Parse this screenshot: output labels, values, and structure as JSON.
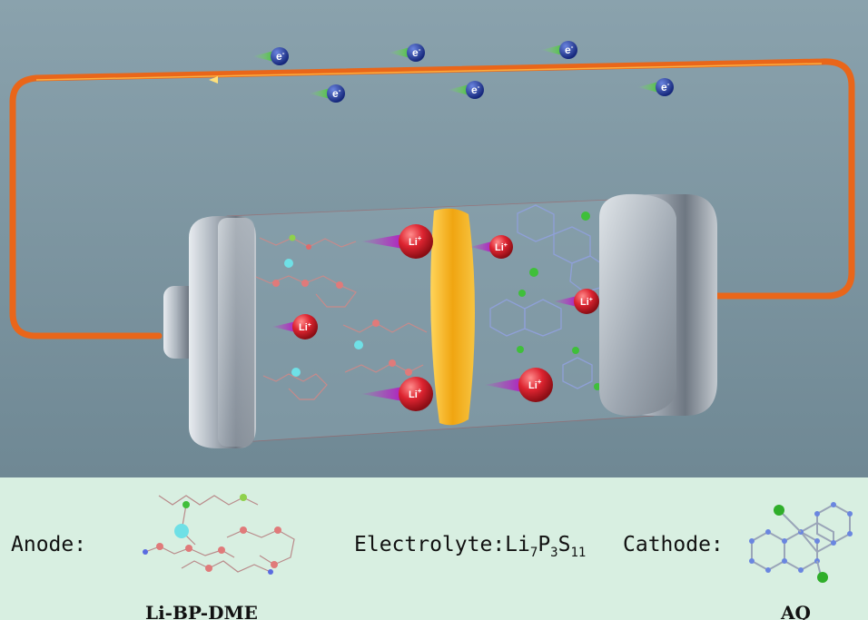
{
  "electron": {
    "symbol": "e",
    "sup": "-"
  },
  "li_ion": {
    "symbol": "Li",
    "sup": "+"
  },
  "legend": {
    "anode_label": "Anode:",
    "anode_name": "Li-BP-DME",
    "electrolyte_label": "Electrolyte:",
    "electrolyte_formula": {
      "li": "Li",
      "li_sub": "7",
      "p": "P",
      "p_sub": "3",
      "s": "S",
      "s_sub": "11"
    },
    "cathode_label": "Cathode:",
    "cathode_name": "AQ"
  },
  "colors": {
    "background": "#7b939f",
    "legend_panel": "#d8efe1",
    "wire": "#ee6a1a",
    "electron": "#1f3b9c",
    "ion": "#d21f2a",
    "separator": "#f2b21a",
    "electrode": "#9ea6b0"
  }
}
